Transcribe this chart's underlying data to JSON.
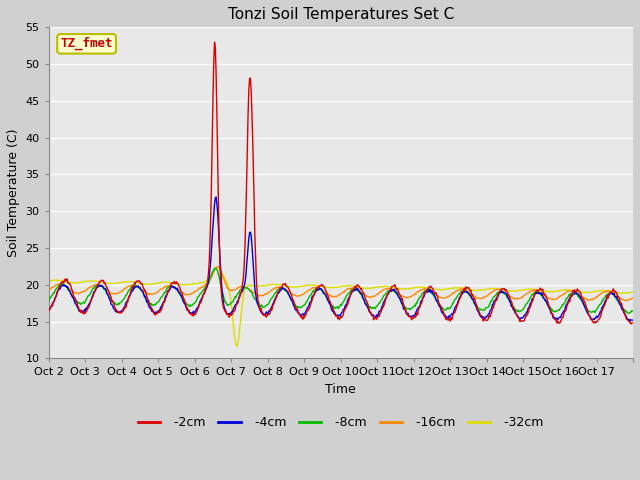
{
  "title": "Tonzi Soil Temperatures Set C",
  "xlabel": "Time",
  "ylabel": "Soil Temperature (C)",
  "ylim": [
    10,
    55
  ],
  "yticks": [
    10,
    15,
    20,
    25,
    30,
    35,
    40,
    45,
    50,
    55
  ],
  "fig_bg": "#d0d0d0",
  "plot_bg": "#e8e8e8",
  "grid_color": "#ffffff",
  "series_colors": {
    "-2cm": "#dd0000",
    "-4cm": "#0000dd",
    "-8cm": "#00bb00",
    "-16cm": "#ff8800",
    "-32cm": "#dddd00"
  },
  "annotation": {
    "text": "TZ_fmet",
    "fontsize": 9,
    "color": "#cc0000",
    "bbox_facecolor": "#ffffcc",
    "bbox_edgecolor": "#bbbb00"
  },
  "xtick_labels": [
    "Oct 2",
    "Oct 3",
    "Oct 4",
    "Oct 5",
    "Oct 6",
    "Oct 7",
    "Oct 8",
    "Oct 9",
    "Oct 10",
    "Oct 11",
    "Oct 12",
    "Oct 13",
    "Oct 14",
    "Oct 15",
    "Oct 16",
    "Oct 17"
  ],
  "n_days": 16,
  "pts_per_day": 48,
  "seed": 0
}
